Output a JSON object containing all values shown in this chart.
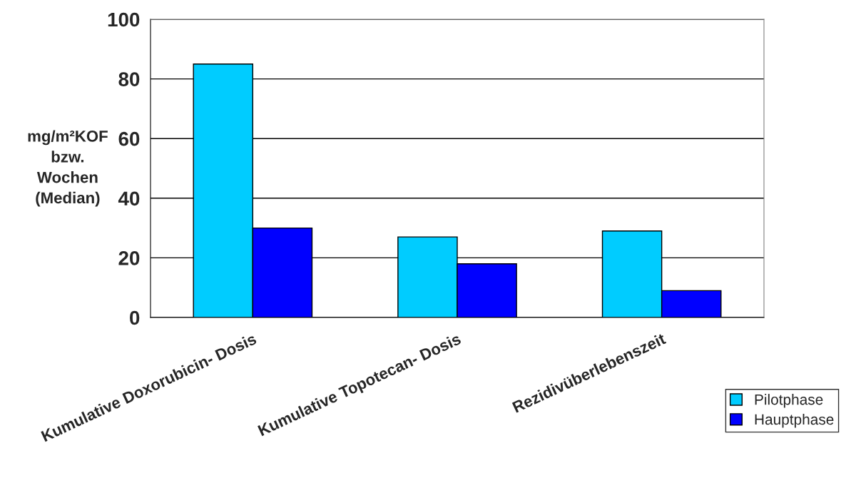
{
  "chart_data": {
    "type": "bar",
    "ylabel": "mg/m²KOF\nbzw.\nWochen\n(Median)",
    "categories": [
      "Kumulative Doxorubicin- Dosis",
      "Kumulative Topotecan- Dosis",
      "Rezidivüberlebenszeit"
    ],
    "series": [
      {
        "name": "Pilotphase",
        "color": "#00ccff",
        "values": [
          85,
          27,
          29
        ]
      },
      {
        "name": "Hauptphase",
        "color": "#0000ff",
        "values": [
          30,
          18,
          9
        ]
      }
    ],
    "ylim": [
      0,
      100
    ],
    "yticks": [
      0,
      20,
      40,
      60,
      80,
      100
    ],
    "grid": "y",
    "legend": "bottom right"
  }
}
